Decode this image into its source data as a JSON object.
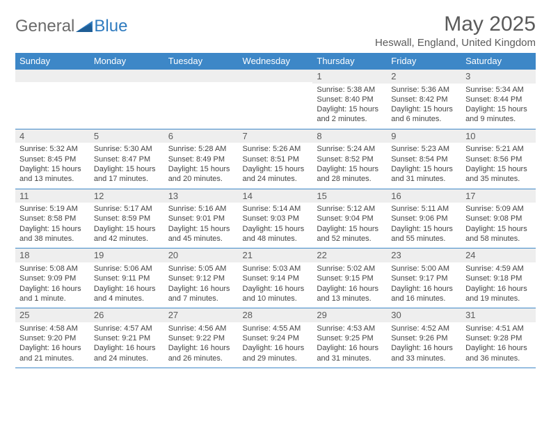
{
  "brand": {
    "part1": "General",
    "part2": "Blue"
  },
  "title": "May 2025",
  "location": "Heswall, England, United Kingdom",
  "colors": {
    "accent": "#3d87c7",
    "header_text": "#ffffff",
    "daynum_bg": "#eeeeee",
    "text": "#5a5a5a",
    "body_text": "#444444",
    "background": "#ffffff"
  },
  "typography": {
    "title_fontsize": 30,
    "location_fontsize": 15,
    "header_fontsize": 13,
    "daynum_fontsize": 13,
    "body_fontsize": 11
  },
  "day_headers": [
    "Sunday",
    "Monday",
    "Tuesday",
    "Wednesday",
    "Thursday",
    "Friday",
    "Saturday"
  ],
  "weeks": [
    [
      {
        "n": "",
        "sr": "",
        "ss": "",
        "dl": ""
      },
      {
        "n": "",
        "sr": "",
        "ss": "",
        "dl": ""
      },
      {
        "n": "",
        "sr": "",
        "ss": "",
        "dl": ""
      },
      {
        "n": "",
        "sr": "",
        "ss": "",
        "dl": ""
      },
      {
        "n": "1",
        "sr": "Sunrise: 5:38 AM",
        "ss": "Sunset: 8:40 PM",
        "dl": "Daylight: 15 hours and 2 minutes."
      },
      {
        "n": "2",
        "sr": "Sunrise: 5:36 AM",
        "ss": "Sunset: 8:42 PM",
        "dl": "Daylight: 15 hours and 6 minutes."
      },
      {
        "n": "3",
        "sr": "Sunrise: 5:34 AM",
        "ss": "Sunset: 8:44 PM",
        "dl": "Daylight: 15 hours and 9 minutes."
      }
    ],
    [
      {
        "n": "4",
        "sr": "Sunrise: 5:32 AM",
        "ss": "Sunset: 8:45 PM",
        "dl": "Daylight: 15 hours and 13 minutes."
      },
      {
        "n": "5",
        "sr": "Sunrise: 5:30 AM",
        "ss": "Sunset: 8:47 PM",
        "dl": "Daylight: 15 hours and 17 minutes."
      },
      {
        "n": "6",
        "sr": "Sunrise: 5:28 AM",
        "ss": "Sunset: 8:49 PM",
        "dl": "Daylight: 15 hours and 20 minutes."
      },
      {
        "n": "7",
        "sr": "Sunrise: 5:26 AM",
        "ss": "Sunset: 8:51 PM",
        "dl": "Daylight: 15 hours and 24 minutes."
      },
      {
        "n": "8",
        "sr": "Sunrise: 5:24 AM",
        "ss": "Sunset: 8:52 PM",
        "dl": "Daylight: 15 hours and 28 minutes."
      },
      {
        "n": "9",
        "sr": "Sunrise: 5:23 AM",
        "ss": "Sunset: 8:54 PM",
        "dl": "Daylight: 15 hours and 31 minutes."
      },
      {
        "n": "10",
        "sr": "Sunrise: 5:21 AM",
        "ss": "Sunset: 8:56 PM",
        "dl": "Daylight: 15 hours and 35 minutes."
      }
    ],
    [
      {
        "n": "11",
        "sr": "Sunrise: 5:19 AM",
        "ss": "Sunset: 8:58 PM",
        "dl": "Daylight: 15 hours and 38 minutes."
      },
      {
        "n": "12",
        "sr": "Sunrise: 5:17 AM",
        "ss": "Sunset: 8:59 PM",
        "dl": "Daylight: 15 hours and 42 minutes."
      },
      {
        "n": "13",
        "sr": "Sunrise: 5:16 AM",
        "ss": "Sunset: 9:01 PM",
        "dl": "Daylight: 15 hours and 45 minutes."
      },
      {
        "n": "14",
        "sr": "Sunrise: 5:14 AM",
        "ss": "Sunset: 9:03 PM",
        "dl": "Daylight: 15 hours and 48 minutes."
      },
      {
        "n": "15",
        "sr": "Sunrise: 5:12 AM",
        "ss": "Sunset: 9:04 PM",
        "dl": "Daylight: 15 hours and 52 minutes."
      },
      {
        "n": "16",
        "sr": "Sunrise: 5:11 AM",
        "ss": "Sunset: 9:06 PM",
        "dl": "Daylight: 15 hours and 55 minutes."
      },
      {
        "n": "17",
        "sr": "Sunrise: 5:09 AM",
        "ss": "Sunset: 9:08 PM",
        "dl": "Daylight: 15 hours and 58 minutes."
      }
    ],
    [
      {
        "n": "18",
        "sr": "Sunrise: 5:08 AM",
        "ss": "Sunset: 9:09 PM",
        "dl": "Daylight: 16 hours and 1 minute."
      },
      {
        "n": "19",
        "sr": "Sunrise: 5:06 AM",
        "ss": "Sunset: 9:11 PM",
        "dl": "Daylight: 16 hours and 4 minutes."
      },
      {
        "n": "20",
        "sr": "Sunrise: 5:05 AM",
        "ss": "Sunset: 9:12 PM",
        "dl": "Daylight: 16 hours and 7 minutes."
      },
      {
        "n": "21",
        "sr": "Sunrise: 5:03 AM",
        "ss": "Sunset: 9:14 PM",
        "dl": "Daylight: 16 hours and 10 minutes."
      },
      {
        "n": "22",
        "sr": "Sunrise: 5:02 AM",
        "ss": "Sunset: 9:15 PM",
        "dl": "Daylight: 16 hours and 13 minutes."
      },
      {
        "n": "23",
        "sr": "Sunrise: 5:00 AM",
        "ss": "Sunset: 9:17 PM",
        "dl": "Daylight: 16 hours and 16 minutes."
      },
      {
        "n": "24",
        "sr": "Sunrise: 4:59 AM",
        "ss": "Sunset: 9:18 PM",
        "dl": "Daylight: 16 hours and 19 minutes."
      }
    ],
    [
      {
        "n": "25",
        "sr": "Sunrise: 4:58 AM",
        "ss": "Sunset: 9:20 PM",
        "dl": "Daylight: 16 hours and 21 minutes."
      },
      {
        "n": "26",
        "sr": "Sunrise: 4:57 AM",
        "ss": "Sunset: 9:21 PM",
        "dl": "Daylight: 16 hours and 24 minutes."
      },
      {
        "n": "27",
        "sr": "Sunrise: 4:56 AM",
        "ss": "Sunset: 9:22 PM",
        "dl": "Daylight: 16 hours and 26 minutes."
      },
      {
        "n": "28",
        "sr": "Sunrise: 4:55 AM",
        "ss": "Sunset: 9:24 PM",
        "dl": "Daylight: 16 hours and 29 minutes."
      },
      {
        "n": "29",
        "sr": "Sunrise: 4:53 AM",
        "ss": "Sunset: 9:25 PM",
        "dl": "Daylight: 16 hours and 31 minutes."
      },
      {
        "n": "30",
        "sr": "Sunrise: 4:52 AM",
        "ss": "Sunset: 9:26 PM",
        "dl": "Daylight: 16 hours and 33 minutes."
      },
      {
        "n": "31",
        "sr": "Sunrise: 4:51 AM",
        "ss": "Sunset: 9:28 PM",
        "dl": "Daylight: 16 hours and 36 minutes."
      }
    ]
  ]
}
